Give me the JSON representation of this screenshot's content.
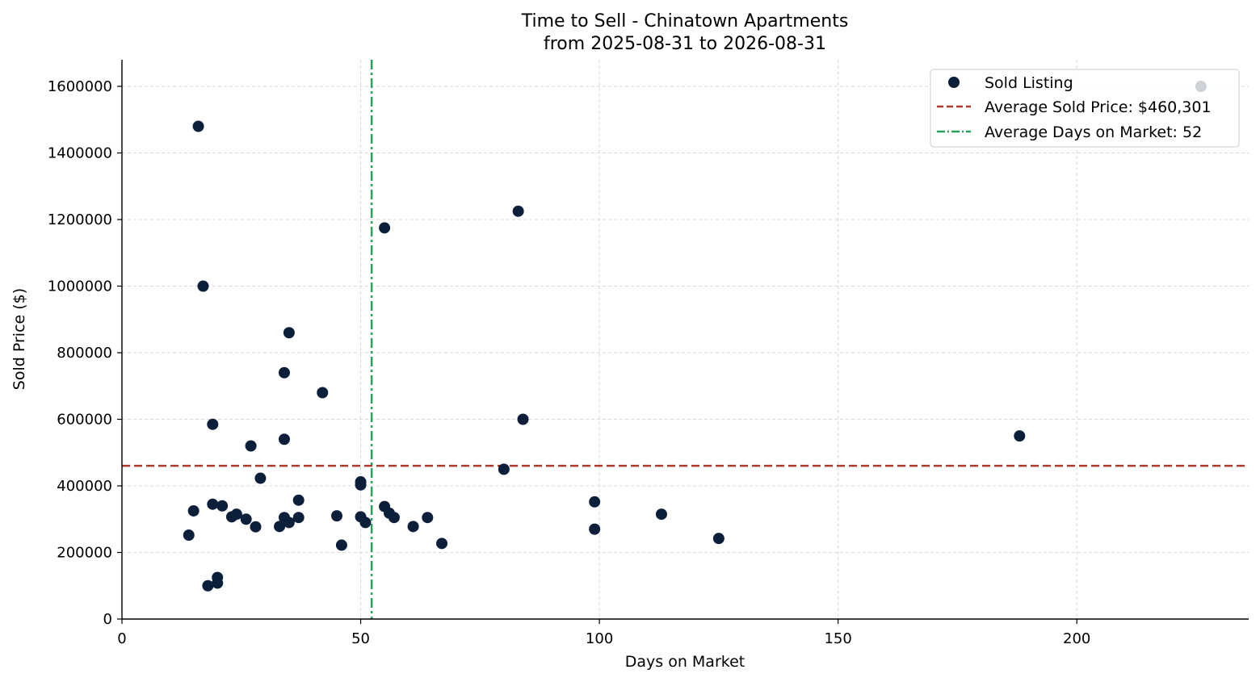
{
  "chart_data": {
    "type": "scatter",
    "title": "Time to Sell - Chinatown Apartments",
    "subtitle": "from 2025-08-31 to 2026-08-31",
    "xlabel": "Days on Market",
    "ylabel": "Sold Price ($)",
    "xlim": [
      0,
      236
    ],
    "ylim": [
      0,
      1680000
    ],
    "xticks": [
      0,
      50,
      100,
      150,
      200
    ],
    "yticks": [
      0,
      200000,
      400000,
      600000,
      800000,
      1000000,
      1200000,
      1400000,
      1600000
    ],
    "grid": true,
    "legend_position": "top-right",
    "series": [
      {
        "name": "Sold Listing",
        "color": "#0b1f3a",
        "points": [
          {
            "x": 14,
            "y": 252000
          },
          {
            "x": 15,
            "y": 325000
          },
          {
            "x": 16,
            "y": 1480000
          },
          {
            "x": 17,
            "y": 1000000
          },
          {
            "x": 18,
            "y": 100000
          },
          {
            "x": 19,
            "y": 585000
          },
          {
            "x": 19,
            "y": 345000
          },
          {
            "x": 20,
            "y": 108000
          },
          {
            "x": 20,
            "y": 125000
          },
          {
            "x": 21,
            "y": 340000
          },
          {
            "x": 23,
            "y": 307000
          },
          {
            "x": 24,
            "y": 315000
          },
          {
            "x": 26,
            "y": 300000
          },
          {
            "x": 27,
            "y": 520000
          },
          {
            "x": 28,
            "y": 277000
          },
          {
            "x": 29,
            "y": 423000
          },
          {
            "x": 33,
            "y": 278000
          },
          {
            "x": 34,
            "y": 740000
          },
          {
            "x": 34,
            "y": 540000
          },
          {
            "x": 34,
            "y": 305000
          },
          {
            "x": 35,
            "y": 860000
          },
          {
            "x": 35,
            "y": 290000
          },
          {
            "x": 37,
            "y": 357000
          },
          {
            "x": 37,
            "y": 305000
          },
          {
            "x": 42,
            "y": 680000
          },
          {
            "x": 45,
            "y": 310000
          },
          {
            "x": 46,
            "y": 222000
          },
          {
            "x": 50,
            "y": 412000
          },
          {
            "x": 50,
            "y": 403000
          },
          {
            "x": 50,
            "y": 307000
          },
          {
            "x": 51,
            "y": 290000
          },
          {
            "x": 55,
            "y": 1175000
          },
          {
            "x": 55,
            "y": 338000
          },
          {
            "x": 56,
            "y": 318000
          },
          {
            "x": 57,
            "y": 305000
          },
          {
            "x": 61,
            "y": 278000
          },
          {
            "x": 64,
            "y": 305000
          },
          {
            "x": 67,
            "y": 227000
          },
          {
            "x": 80,
            "y": 450000
          },
          {
            "x": 83,
            "y": 1225000
          },
          {
            "x": 84,
            "y": 600000
          },
          {
            "x": 99,
            "y": 352000
          },
          {
            "x": 99,
            "y": 270000
          },
          {
            "x": 113,
            "y": 315000
          },
          {
            "x": 125,
            "y": 242000
          },
          {
            "x": 188,
            "y": 550000
          },
          {
            "x": 226,
            "y": 1600000
          }
        ]
      }
    ],
    "reference_lines": [
      {
        "name": "Average Sold Price: $460,301",
        "orientation": "horizontal",
        "value": 460301,
        "color": "#b03a2e",
        "style": "dashed"
      },
      {
        "name": "Average Days on Market: 52",
        "orientation": "vertical",
        "value": 52.3,
        "color": "#27a35a",
        "style": "dashdot"
      }
    ]
  }
}
